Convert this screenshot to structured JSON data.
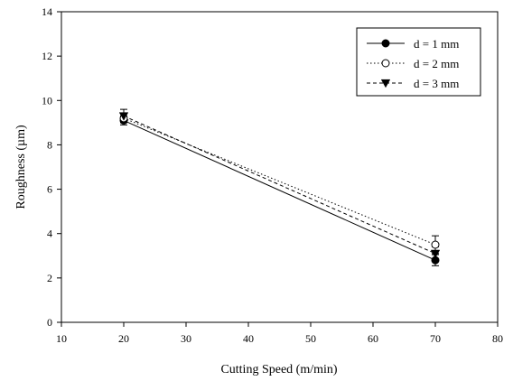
{
  "chart_data": {
    "type": "line",
    "xlabel": "Cutting Speed (m/min)",
    "ylabel": "Roughness (µm)",
    "xlim": [
      10,
      80
    ],
    "ylim": [
      0,
      14
    ],
    "xticks": [
      10,
      20,
      30,
      40,
      50,
      60,
      70,
      80
    ],
    "yticks": [
      0,
      2,
      4,
      6,
      8,
      10,
      12,
      14
    ],
    "grid": false,
    "legend_position": "top-right",
    "series": [
      {
        "name": "d = 1 mm",
        "marker": "filled-circle",
        "line_style": "solid",
        "x": [
          20,
          70
        ],
        "y": [
          9.1,
          2.8
        ],
        "error": [
          0.2,
          0.25
        ]
      },
      {
        "name": "d = 2 mm",
        "marker": "open-circle",
        "line_style": "dotted",
        "x": [
          20,
          70
        ],
        "y": [
          9.2,
          3.5
        ],
        "error": [
          0.2,
          0.4
        ]
      },
      {
        "name": "d = 3 mm",
        "marker": "filled-triangle-down",
        "line_style": "dashed",
        "x": [
          20,
          70
        ],
        "y": [
          9.3,
          3.1
        ],
        "error": [
          0.3,
          0.3
        ]
      }
    ]
  }
}
